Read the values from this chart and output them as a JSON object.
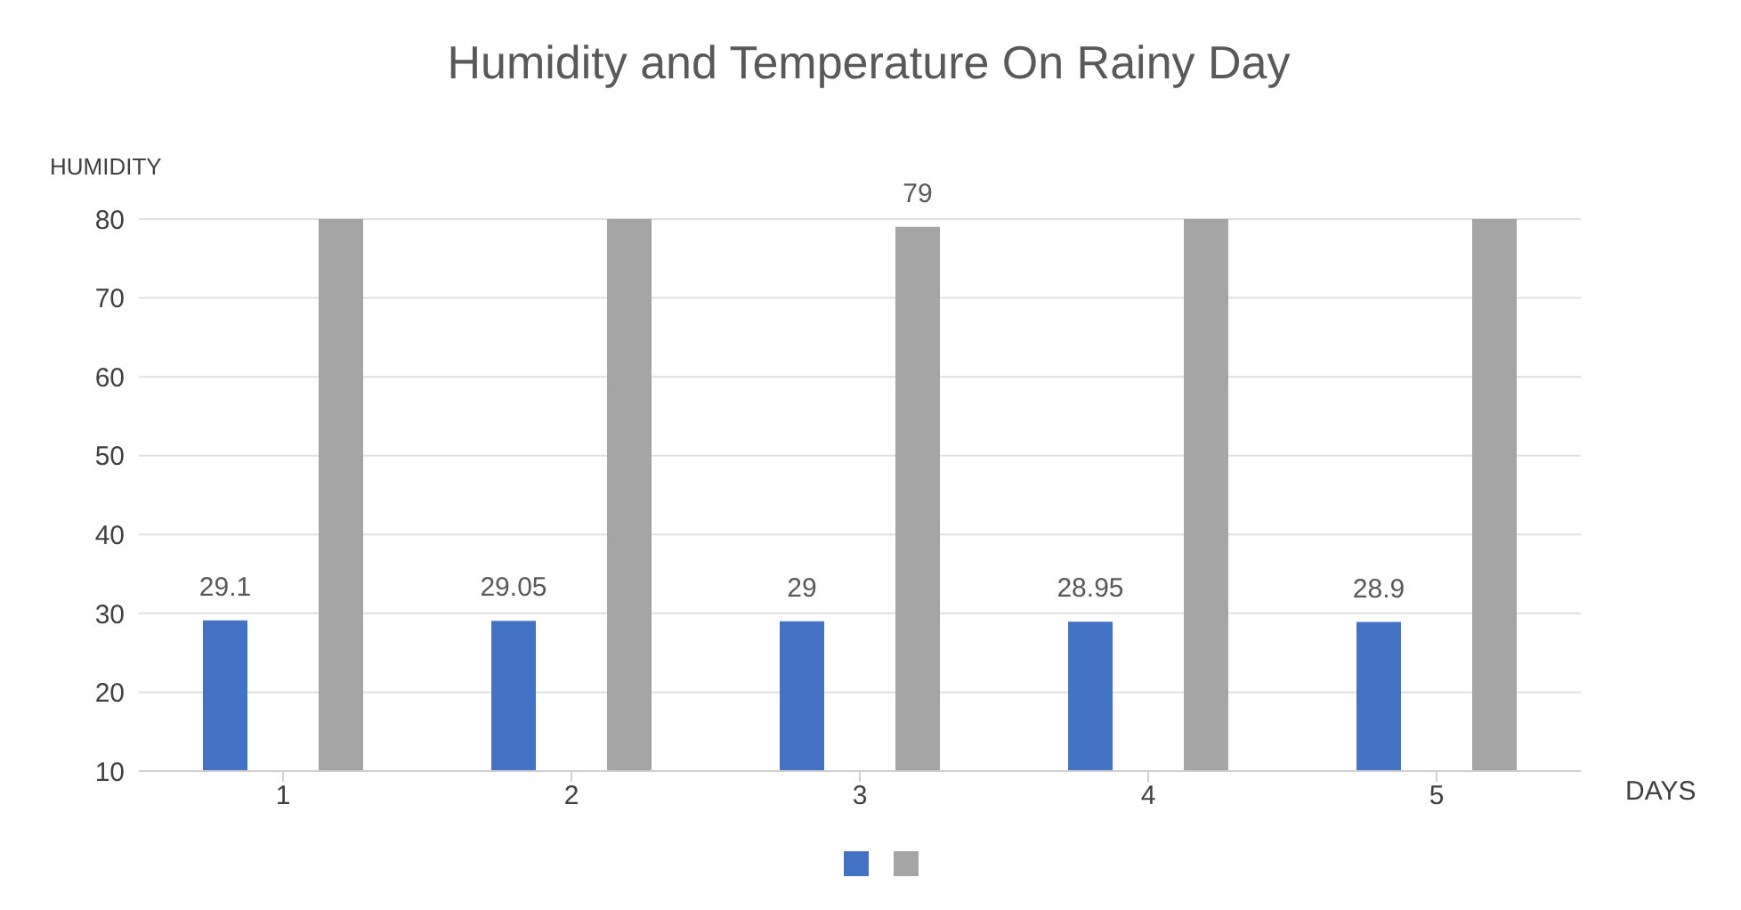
{
  "chart_data": {
    "type": "bar",
    "title": "Humidity and Temperature On Rainy Day",
    "xlabel": "DAYS",
    "ylabel": "HUMIDITY",
    "categories": [
      "1",
      "2",
      "3",
      "4",
      "5"
    ],
    "series": [
      {
        "color": "#4472c4",
        "values": [
          29.1,
          29.05,
          29,
          28.95,
          28.9
        ],
        "value_labels": [
          "29.1",
          "29.05",
          "29",
          "28.95",
          "28.9"
        ]
      },
      {
        "color": "#a5a5a5",
        "values": [
          80,
          80,
          79,
          80,
          80
        ],
        "value_labels": [
          null,
          null,
          "79",
          null,
          null
        ]
      }
    ],
    "ylim": [
      10,
      80
    ],
    "yticks": [
      10,
      20,
      30,
      40,
      50,
      60,
      70,
      80
    ],
    "grid": "y"
  }
}
